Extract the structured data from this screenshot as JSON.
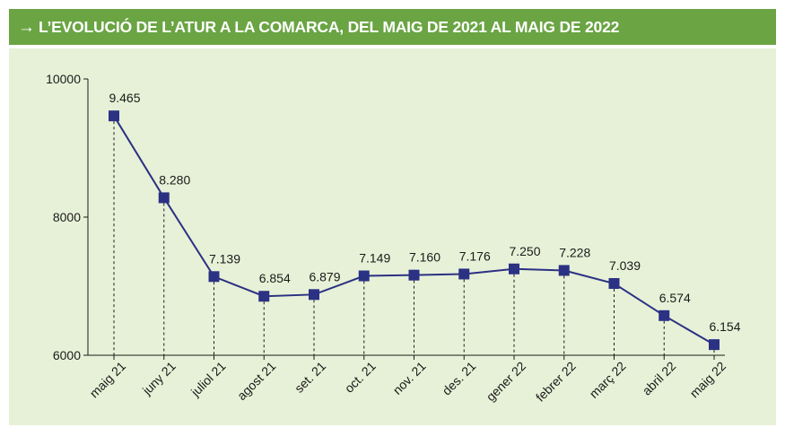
{
  "header": {
    "arrow": "→",
    "title": "L’EVOLUCIÓ DE L’ATUR A LA COMARCA, DEL MAIG DE 2021 AL MAIG DE 2022"
  },
  "colors": {
    "header_bg": "#6aa443",
    "panel_bg": "#e7f1d7",
    "series": "#2b3183"
  },
  "chart_data": {
    "type": "line",
    "title": "",
    "xlabel": "",
    "ylabel": "",
    "ylim": [
      6000,
      10000
    ],
    "yticks": [
      {
        "value": 6000,
        "label": "6000"
      },
      {
        "value": 8000,
        "label": "8000"
      },
      {
        "value": 10000,
        "label": "10000"
      }
    ],
    "grid": false,
    "categories": [
      "maig 21",
      "juny 21",
      "juliol 21",
      "agost 21",
      "set. 21",
      "oct. 21",
      "nov. 21",
      "des. 21",
      "gener 22",
      "febrer 22",
      "març 22",
      "abril 22",
      "maig 22"
    ],
    "series": [
      {
        "values": [
          9465,
          8280,
          7139,
          6854,
          6879,
          7149,
          7160,
          7176,
          7250,
          7228,
          7039,
          6574,
          6154
        ],
        "labels": [
          "9.465",
          "8.280",
          "7.139",
          "6.854",
          "6.879",
          "7.149",
          "7.160",
          "7.176",
          "7.250",
          "7.228",
          "7.039",
          "6.574",
          "6.154"
        ]
      }
    ],
    "marker": "square",
    "drop_lines": "dashed"
  }
}
